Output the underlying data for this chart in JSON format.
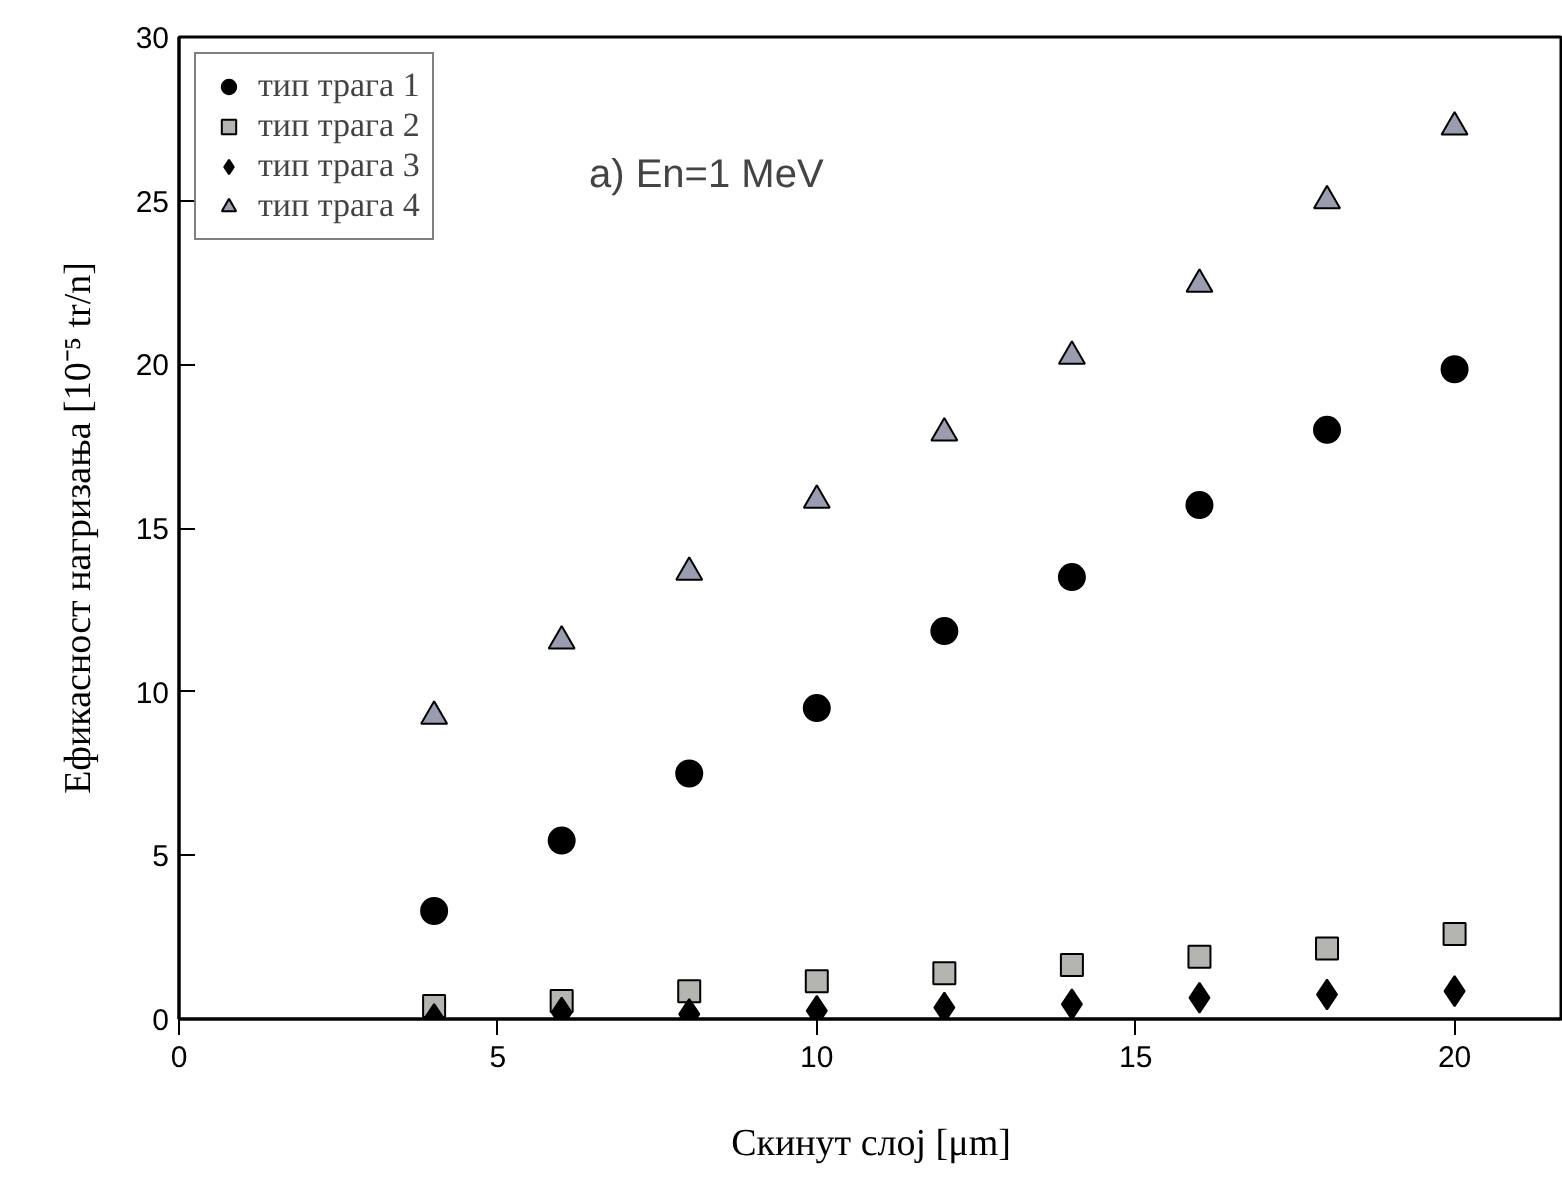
{
  "chart_data": {
    "type": "scatter",
    "xlabel": "Скинут слој [μm]",
    "ylabel": "Ефикасност нагризања [10⁻⁵ tr/n]",
    "annotations": [
      "a) En=1 MeV"
    ],
    "x": [
      4,
      6,
      8,
      10,
      12,
      14,
      16,
      18,
      20
    ],
    "series": [
      {
        "name": "тип трага 1",
        "color": "#000000",
        "marker": "circle",
        "values": [
          3.3,
          5.45,
          7.5,
          9.5,
          11.85,
          13.5,
          15.7,
          18.0,
          19.85
        ]
      },
      {
        "name": "тип трага 2",
        "color": "#b4b4b0",
        "marker": "square",
        "values": [
          0.4,
          0.55,
          0.85,
          1.15,
          1.4,
          1.65,
          1.9,
          2.15,
          2.6
        ]
      },
      {
        "name": "тип трага 3",
        "color": "#000000",
        "marker": "diamond",
        "values": [
          0.0,
          0.2,
          0.15,
          0.25,
          0.35,
          0.45,
          0.65,
          0.75,
          0.85
        ]
      },
      {
        "name": "тип трага 4",
        "color": "#9a9cb0",
        "marker": "triangle",
        "values": [
          9.25,
          11.55,
          13.65,
          15.85,
          17.9,
          20.25,
          22.45,
          25.0,
          27.25
        ]
      }
    ],
    "xlim": [
      0,
      21.7
    ],
    "ylim": [
      0,
      30
    ],
    "xticks": [
      0,
      5,
      10,
      15,
      20
    ],
    "yticks": [
      0,
      5,
      10,
      15,
      20,
      25,
      30
    ],
    "grid": false,
    "legend": "top left"
  }
}
